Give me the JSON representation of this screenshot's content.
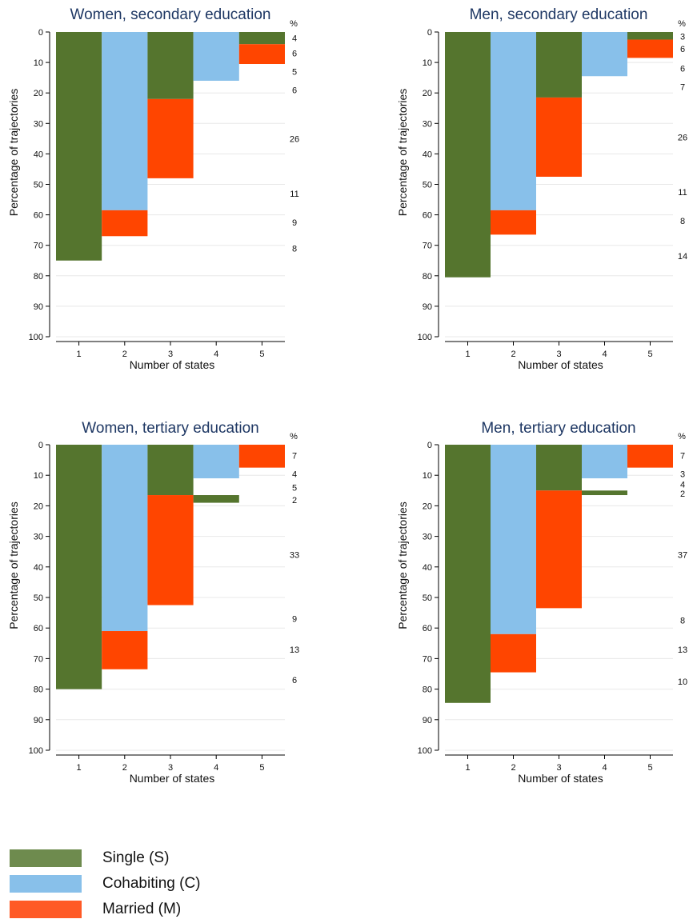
{
  "colors": {
    "single": "#55752E",
    "cohabiting": "#88C0EA",
    "married": "#FF4500",
    "title": "#1F3864",
    "axis": "#000000",
    "grid": "#E8E8E8"
  },
  "legend": {
    "items": [
      {
        "label": "Single (S)",
        "color": "#6E8B4E"
      },
      {
        "label": "Cohabiting (C)",
        "color": "#88C0EA"
      },
      {
        "label": "Married (M)",
        "color": "#FF5A26"
      }
    ]
  },
  "chart_data": [
    {
      "type": "bar",
      "title": "Women, secondary education",
      "xlabel": "Number of states",
      "ylabel": "Percentage of trajectories",
      "ylim": [
        0,
        100
      ],
      "yticks": [
        0,
        10,
        20,
        30,
        40,
        50,
        60,
        70,
        80,
        90,
        100
      ],
      "xticks": [
        1,
        2,
        3,
        4,
        5
      ],
      "y_inverted": true,
      "pct_header": "%",
      "segments": [
        {
          "x": 1,
          "state": "single",
          "from": 0,
          "to": 75
        },
        {
          "x": 2,
          "state": "cohabiting",
          "from": 0,
          "to": 58.5
        },
        {
          "x": 2,
          "state": "married",
          "from": 58.5,
          "to": 67
        },
        {
          "x": 3,
          "state": "single",
          "from": 0,
          "to": 22
        },
        {
          "x": 3,
          "state": "married",
          "from": 22,
          "to": 48
        },
        {
          "x": 4,
          "state": "cohabiting",
          "from": 0,
          "to": 16
        },
        {
          "x": 5,
          "state": "single",
          "from": 0,
          "to": 4
        },
        {
          "x": 5,
          "state": "married",
          "from": 4,
          "to": 10.5
        }
      ],
      "annotations": [
        {
          "y": 2,
          "text": "4"
        },
        {
          "y": 7,
          "text": "6"
        },
        {
          "y": 13,
          "text": "5"
        },
        {
          "y": 19,
          "text": "6"
        },
        {
          "y": 35,
          "text": "26"
        },
        {
          "y": 53,
          "text": "11"
        },
        {
          "y": 62.5,
          "text": "9"
        },
        {
          "y": 71,
          "text": "8"
        }
      ]
    },
    {
      "type": "bar",
      "title": "Men, secondary education",
      "xlabel": "Number of states",
      "ylabel": "Percentage of trajectories",
      "ylim": [
        0,
        100
      ],
      "yticks": [
        0,
        10,
        20,
        30,
        40,
        50,
        60,
        70,
        80,
        90,
        100
      ],
      "xticks": [
        1,
        2,
        3,
        4,
        5
      ],
      "y_inverted": true,
      "pct_header": "%",
      "segments": [
        {
          "x": 1,
          "state": "single",
          "from": 0,
          "to": 80.5
        },
        {
          "x": 2,
          "state": "cohabiting",
          "from": 0,
          "to": 58.5
        },
        {
          "x": 2,
          "state": "married",
          "from": 58.5,
          "to": 66.5
        },
        {
          "x": 3,
          "state": "single",
          "from": 0,
          "to": 21.5
        },
        {
          "x": 3,
          "state": "married",
          "from": 21.5,
          "to": 47.5
        },
        {
          "x": 4,
          "state": "cohabiting",
          "from": 0,
          "to": 14.5
        },
        {
          "x": 5,
          "state": "single",
          "from": 0,
          "to": 2.5
        },
        {
          "x": 5,
          "state": "married",
          "from": 2.5,
          "to": 8.5
        }
      ],
      "annotations": [
        {
          "y": 1.5,
          "text": "3"
        },
        {
          "y": 5.5,
          "text": "6"
        },
        {
          "y": 12,
          "text": "6"
        },
        {
          "y": 18,
          "text": "7"
        },
        {
          "y": 34.5,
          "text": "26"
        },
        {
          "y": 52.5,
          "text": "11"
        },
        {
          "y": 62,
          "text": "8"
        },
        {
          "y": 73.5,
          "text": "14"
        }
      ]
    },
    {
      "type": "bar",
      "title": "Women, tertiary education",
      "xlabel": "Number of states",
      "ylabel": "Percentage of trajectories",
      "ylim": [
        0,
        100
      ],
      "yticks": [
        0,
        10,
        20,
        30,
        40,
        50,
        60,
        70,
        80,
        90,
        100
      ],
      "xticks": [
        1,
        2,
        3,
        4,
        5
      ],
      "y_inverted": true,
      "pct_header": "%",
      "segments": [
        {
          "x": 1,
          "state": "single",
          "from": 0,
          "to": 80
        },
        {
          "x": 2,
          "state": "cohabiting",
          "from": 0,
          "to": 61
        },
        {
          "x": 2,
          "state": "married",
          "from": 61,
          "to": 73.5
        },
        {
          "x": 3,
          "state": "single",
          "from": 0,
          "to": 16.5
        },
        {
          "x": 3,
          "state": "married",
          "from": 16.5,
          "to": 52.5
        },
        {
          "x": 4,
          "state": "cohabiting",
          "from": 0,
          "to": 11
        },
        {
          "x": 4,
          "state": "single",
          "from": 16.5,
          "to": 19
        },
        {
          "x": 5,
          "state": "married",
          "from": 0,
          "to": 7.5
        }
      ],
      "annotations": [
        {
          "y": 3.5,
          "text": "7"
        },
        {
          "y": 9.5,
          "text": "4"
        },
        {
          "y": 14,
          "text": "5"
        },
        {
          "y": 18,
          "text": "2"
        },
        {
          "y": 36,
          "text": "33"
        },
        {
          "y": 57,
          "text": "9"
        },
        {
          "y": 67,
          "text": "13"
        },
        {
          "y": 77,
          "text": "6"
        }
      ]
    },
    {
      "type": "bar",
      "title": "Men, tertiary education",
      "xlabel": "Number of states",
      "ylabel": "Percentage of trajectories",
      "ylim": [
        0,
        100
      ],
      "yticks": [
        0,
        10,
        20,
        30,
        40,
        50,
        60,
        70,
        80,
        90,
        100
      ],
      "xticks": [
        1,
        2,
        3,
        4,
        5
      ],
      "y_inverted": true,
      "pct_header": "%",
      "segments": [
        {
          "x": 1,
          "state": "single",
          "from": 0,
          "to": 84.5
        },
        {
          "x": 2,
          "state": "cohabiting",
          "from": 0,
          "to": 62
        },
        {
          "x": 2,
          "state": "married",
          "from": 62,
          "to": 74.5
        },
        {
          "x": 3,
          "state": "single",
          "from": 0,
          "to": 15
        },
        {
          "x": 3,
          "state": "married",
          "from": 15,
          "to": 53.5
        },
        {
          "x": 4,
          "state": "cohabiting",
          "from": 0,
          "to": 11
        },
        {
          "x": 4,
          "state": "single",
          "from": 15,
          "to": 16.5
        },
        {
          "x": 5,
          "state": "married",
          "from": 0,
          "to": 7.5
        }
      ],
      "annotations": [
        {
          "y": 3.5,
          "text": "7"
        },
        {
          "y": 9.5,
          "text": "3"
        },
        {
          "y": 13,
          "text": "4"
        },
        {
          "y": 16,
          "text": "2"
        },
        {
          "y": 36,
          "text": "37"
        },
        {
          "y": 57.5,
          "text": "8"
        },
        {
          "y": 67,
          "text": "13"
        },
        {
          "y": 77.5,
          "text": "10"
        }
      ]
    }
  ]
}
